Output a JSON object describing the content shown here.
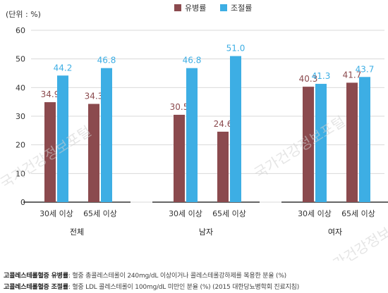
{
  "colors": {
    "prevalence": "#8b4a4e",
    "control": "#3daee4",
    "grid": "#d9d9d9",
    "axis": "#333333",
    "value_prevalence": "#8b4a4e",
    "value_control": "#3daee4",
    "watermark": "#cfcfcf"
  },
  "watermark": "국가건강정보포털",
  "footnotes": [
    {
      "term": "고콜레스테롤혈증 유병률",
      "desc": ": 혈중 총콜레스테롤이 240mg/dL 이상이거나 콜레스테롤강하제를 복용한 분율 (%)"
    },
    {
      "term": "고콜레스테롤혈증 조절률",
      "desc": ": 혈중 LDL 콜레스테롤이 100mg/dL 미만인 분율 (%) (2015 대한당뇨병학회 진료지침)"
    }
  ],
  "chart_data": {
    "type": "bar",
    "unit_label": "(단위 : %)",
    "ylim": [
      0,
      60
    ],
    "yticks": [
      0,
      10,
      20,
      30,
      40,
      50,
      60
    ],
    "grid": "horizontal",
    "legend": {
      "position": "top-center",
      "entries": [
        "유병률",
        "조절률"
      ]
    },
    "series": [
      {
        "name": "유병률",
        "color_key": "prevalence"
      },
      {
        "name": "조절률",
        "color_key": "control"
      }
    ],
    "groups": [
      {
        "name": "전체",
        "categories": [
          "30세 이상",
          "65세 이상"
        ],
        "values": [
          [
            34.9,
            44.2
          ],
          [
            34.3,
            46.8
          ]
        ]
      },
      {
        "name": "남자",
        "categories": [
          "30세 이상",
          "65세 이상"
        ],
        "values": [
          [
            30.5,
            46.8
          ],
          [
            24.6,
            51.0
          ]
        ]
      },
      {
        "name": "여자",
        "categories": [
          "30세 이상",
          "65세 이상"
        ],
        "values": [
          [
            40.3,
            41.3
          ],
          [
            41.7,
            43.7
          ]
        ]
      }
    ]
  }
}
